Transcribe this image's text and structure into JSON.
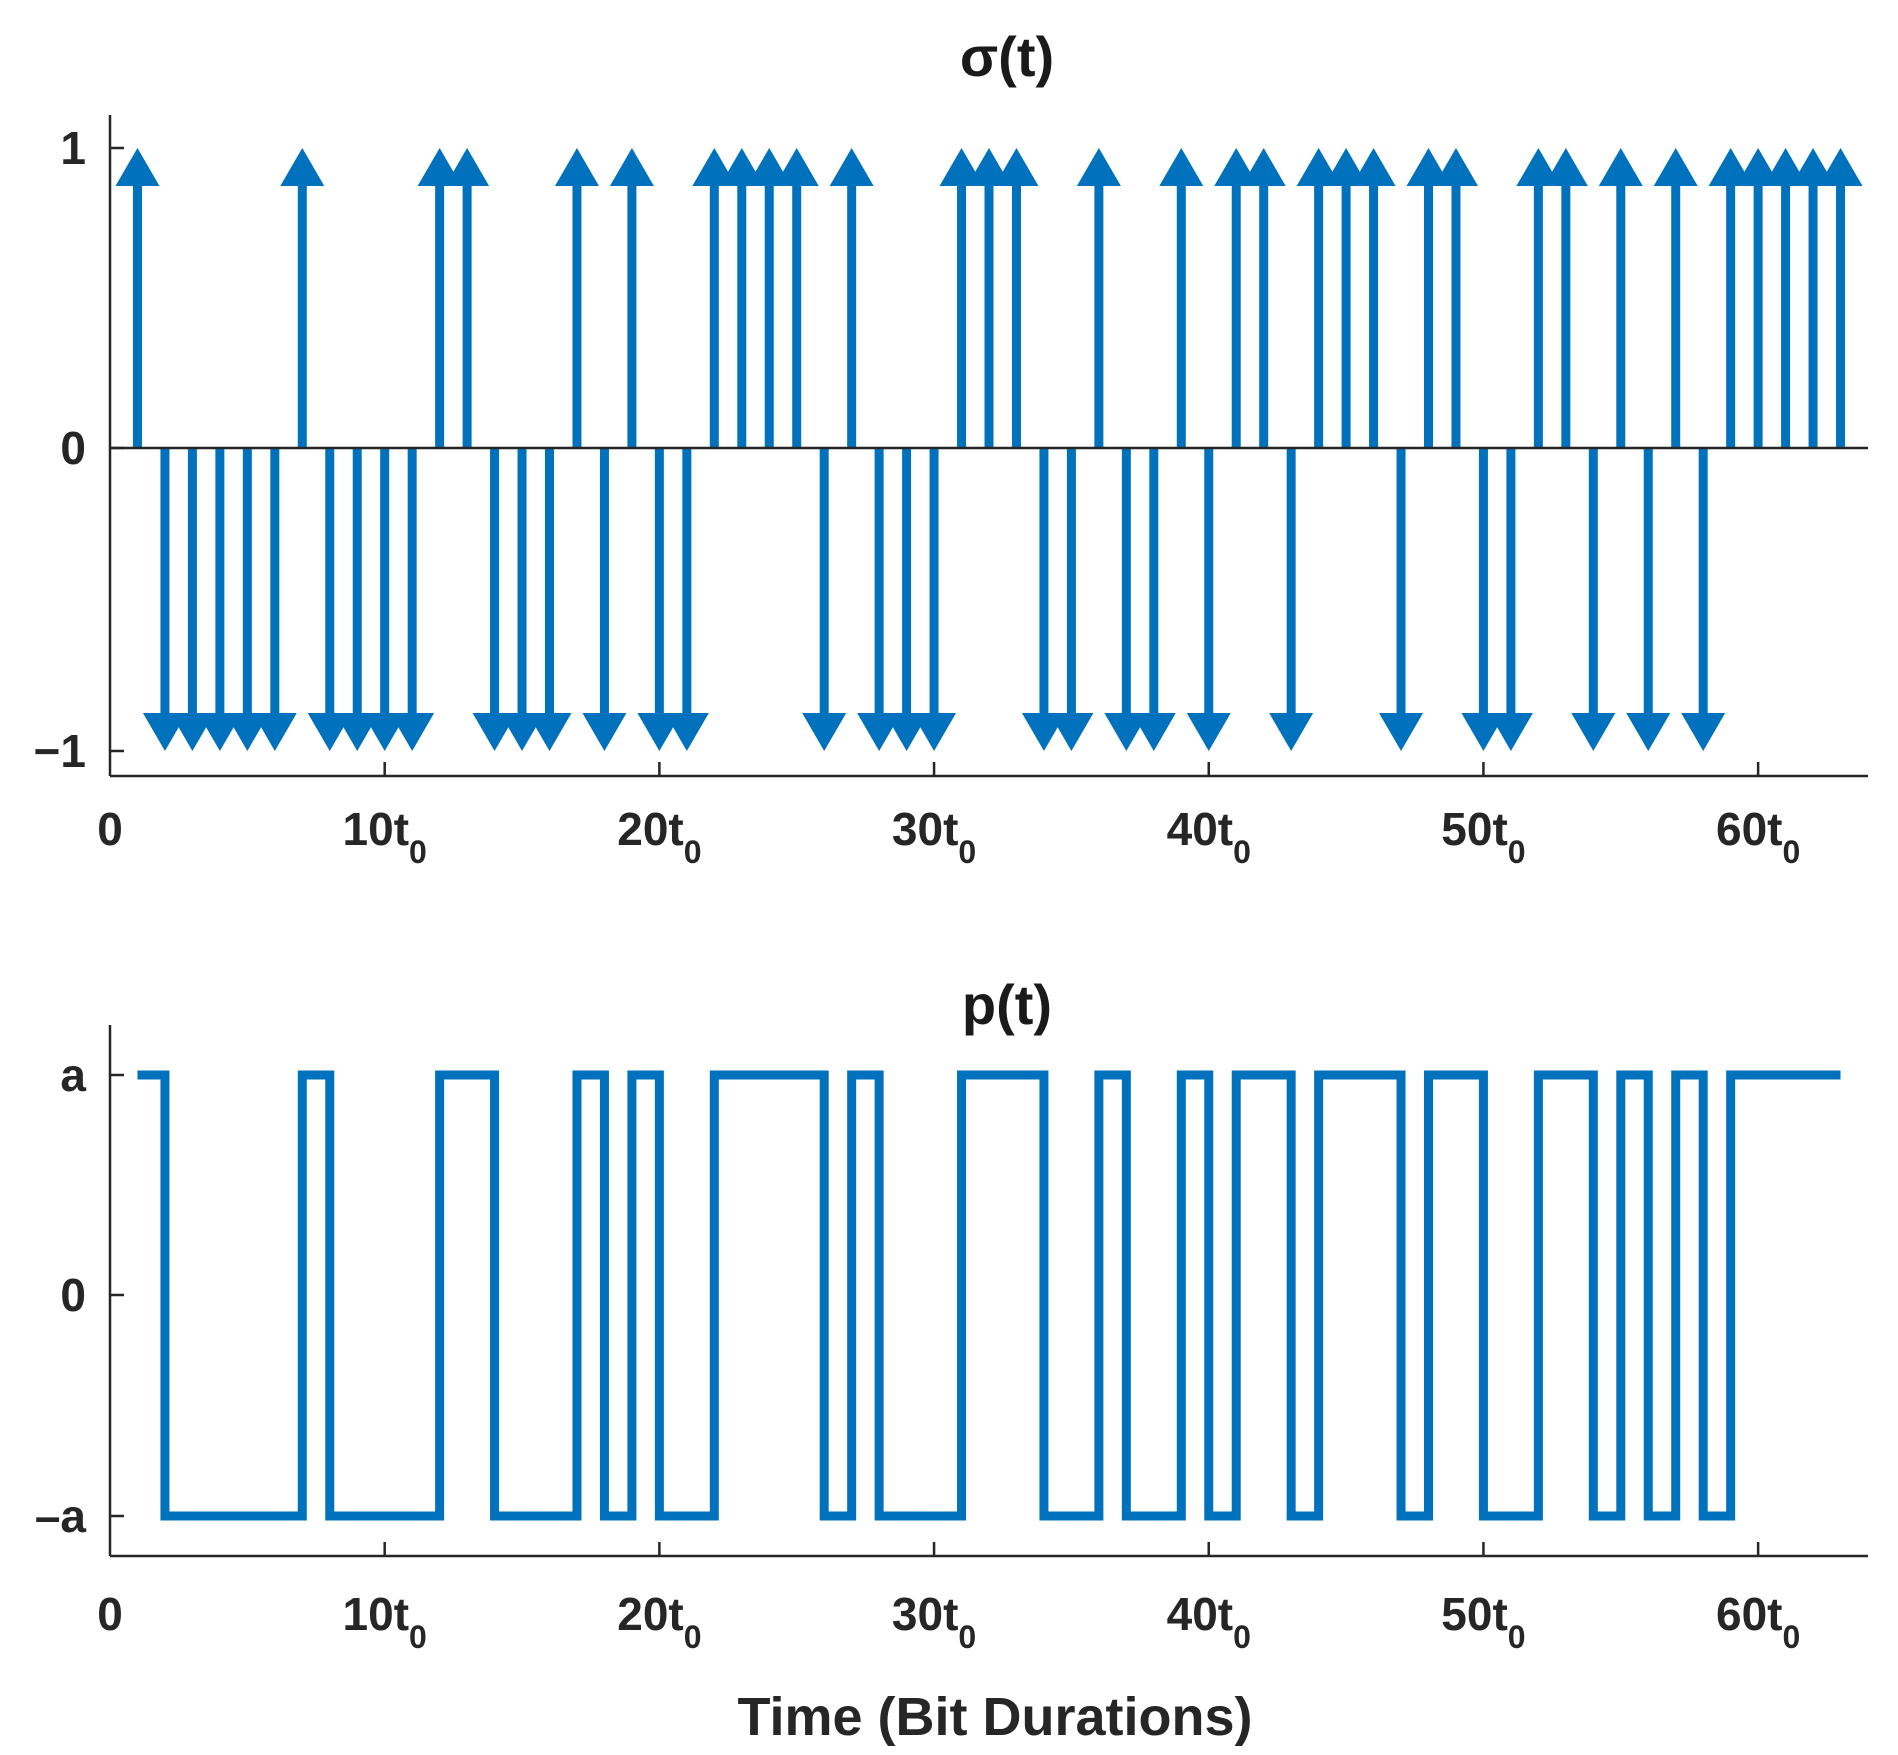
{
  "colors": {
    "series": "#0072BD",
    "axes": "#262626",
    "background": "#ffffff"
  },
  "xlabel": "Time (Bit Durations)",
  "chart_data": [
    {
      "type": "stem",
      "title": "σ(t)",
      "xlim": [
        0,
        64
      ],
      "ylim": [
        -1.1,
        1.1
      ],
      "x_ticks": [
        {
          "value": 0,
          "main": "0",
          "sub": ""
        },
        {
          "value": 10,
          "main": "10t",
          "sub": "0"
        },
        {
          "value": 20,
          "main": "20t",
          "sub": "0"
        },
        {
          "value": 30,
          "main": "30t",
          "sub": "0"
        },
        {
          "value": 40,
          "main": "40t",
          "sub": "0"
        },
        {
          "value": 50,
          "main": "50t",
          "sub": "0"
        },
        {
          "value": 60,
          "main": "60t",
          "sub": "0"
        }
      ],
      "y_ticks": [
        {
          "value": 1,
          "label": "1"
        },
        {
          "value": 0,
          "label": "0"
        },
        {
          "value": -1,
          "label": "−1"
        }
      ],
      "x": [
        1,
        2,
        3,
        4,
        5,
        6,
        7,
        8,
        9,
        10,
        11,
        12,
        13,
        14,
        15,
        16,
        17,
        18,
        19,
        20,
        21,
        22,
        23,
        24,
        25,
        26,
        27,
        28,
        29,
        30,
        31,
        32,
        33,
        34,
        35,
        36,
        37,
        38,
        39,
        40,
        41,
        42,
        43,
        44,
        45,
        46,
        47,
        48,
        49,
        50,
        51,
        52,
        53,
        54,
        55,
        56,
        57,
        58,
        59,
        60,
        61,
        62,
        63
      ],
      "values": [
        1,
        -1,
        -1,
        -1,
        -1,
        -1,
        1,
        -1,
        -1,
        -1,
        -1,
        1,
        1,
        -1,
        -1,
        -1,
        1,
        -1,
        1,
        -1,
        -1,
        1,
        1,
        1,
        1,
        -1,
        1,
        -1,
        -1,
        -1,
        1,
        1,
        1,
        -1,
        -1,
        1,
        -1,
        -1,
        1,
        -1,
        1,
        1,
        -1,
        1,
        1,
        1,
        -1,
        1,
        1,
        -1,
        -1,
        1,
        1,
        -1,
        1,
        -1,
        1,
        -1,
        1,
        1,
        1,
        1,
        1
      ]
    },
    {
      "type": "line",
      "title": "p(t)",
      "xlim": [
        0,
        64
      ],
      "ylim": [
        -1.2,
        1.2
      ],
      "x_ticks": [
        {
          "value": 0,
          "main": "0",
          "sub": ""
        },
        {
          "value": 10,
          "main": "10t",
          "sub": "0"
        },
        {
          "value": 20,
          "main": "20t",
          "sub": "0"
        },
        {
          "value": 30,
          "main": "30t",
          "sub": "0"
        },
        {
          "value": 40,
          "main": "40t",
          "sub": "0"
        },
        {
          "value": 50,
          "main": "50t",
          "sub": "0"
        },
        {
          "value": 60,
          "main": "60t",
          "sub": "0"
        }
      ],
      "y_ticks": [
        {
          "value": 1,
          "label": "a"
        },
        {
          "value": 0,
          "label": "0"
        },
        {
          "value": -1,
          "label": "–a"
        }
      ],
      "step_start": 1,
      "step_end": 63,
      "values": [
        1,
        -1,
        -1,
        -1,
        -1,
        -1,
        1,
        -1,
        -1,
        -1,
        -1,
        1,
        1,
        -1,
        -1,
        -1,
        1,
        -1,
        1,
        -1,
        -1,
        1,
        1,
        1,
        1,
        -1,
        1,
        -1,
        -1,
        -1,
        1,
        1,
        1,
        -1,
        -1,
        1,
        -1,
        -1,
        1,
        -1,
        1,
        1,
        -1,
        1,
        1,
        1,
        -1,
        1,
        1,
        -1,
        -1,
        1,
        1,
        -1,
        1,
        -1,
        1,
        -1,
        1,
        1,
        1,
        1,
        1
      ]
    }
  ]
}
